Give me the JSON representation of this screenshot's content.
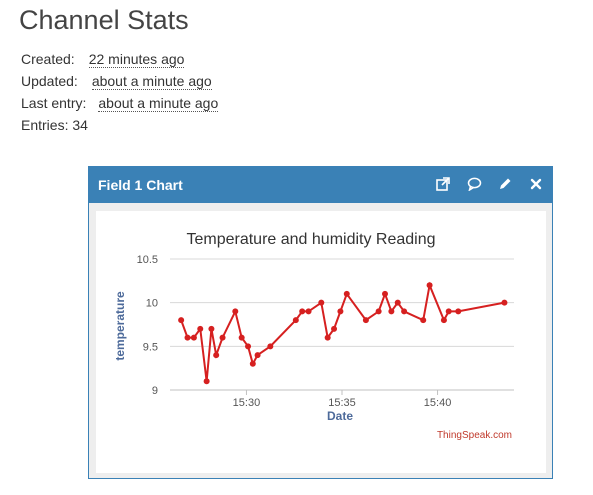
{
  "page": {
    "title": "Channel Stats"
  },
  "stats": {
    "created_label": "Created:",
    "created_value": "22 minutes ago",
    "updated_label": "Updated:",
    "updated_value": "about a minute ago",
    "last_entry_label": "Last entry:",
    "last_entry_value": "about a minute ago",
    "entries_label": "Entries:",
    "entries_value": "34"
  },
  "panel": {
    "title": "Field 1 Chart",
    "icons": [
      "external-link-icon",
      "comment-icon",
      "pencil-icon",
      "close-icon"
    ],
    "header_color": "#3a81b6"
  },
  "chart_data": {
    "type": "line",
    "title": "Temperature and humidity Reading",
    "xlabel": "Date",
    "ylabel": "temperature",
    "credit": "ThingSpeak.com",
    "line_color": "#d62020",
    "grid": "horizontal",
    "ylim": [
      9,
      10.5
    ],
    "xlim": [
      "15:26",
      "15:44"
    ],
    "x_ticks": [
      "15:30",
      "15:35",
      "15:40"
    ],
    "y_ticks": [
      9,
      9.5,
      10,
      10.5
    ],
    "series": [
      {
        "x": [
          "15:26:35",
          "15:26:55",
          "15:27:15",
          "15:27:35",
          "15:27:55",
          "15:28:10",
          "15:28:25",
          "15:28:45",
          "15:29:25",
          "15:29:45",
          "15:30:05",
          "15:30:20",
          "15:30:35",
          "15:31:15",
          "15:32:35",
          "15:32:55",
          "15:33:15",
          "15:33:55",
          "15:34:15",
          "15:34:35",
          "15:34:55",
          "15:35:15",
          "15:36:15",
          "15:36:55",
          "15:37:15",
          "15:37:35",
          "15:37:55",
          "15:38:15",
          "15:39:15",
          "15:39:35",
          "15:40:20",
          "15:40:35",
          "15:41:05",
          "15:43:30"
        ],
        "y": [
          9.8,
          9.6,
          9.6,
          9.7,
          9.1,
          9.7,
          9.4,
          9.6,
          9.9,
          9.6,
          9.5,
          9.3,
          9.4,
          9.5,
          9.8,
          9.9,
          9.9,
          10.0,
          9.6,
          9.7,
          9.9,
          10.1,
          9.8,
          9.9,
          10.1,
          9.9,
          10.0,
          9.9,
          9.8,
          10.2,
          9.8,
          9.9,
          9.9,
          10.0
        ]
      }
    ]
  }
}
